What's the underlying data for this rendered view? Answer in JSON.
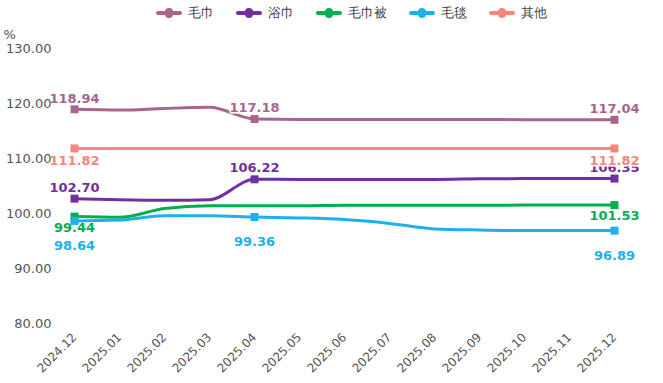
{
  "chart_data": {
    "type": "line",
    "ylabel": "%",
    "x": [
      "2024.12",
      "2025.01",
      "2025.02",
      "2025.03",
      "2025.04",
      "2025.05",
      "2025.06",
      "2025.07",
      "2025.08",
      "2025.09",
      "2025.10",
      "2025.11",
      "2025.12"
    ],
    "ylim": [
      80,
      130
    ],
    "yticks": [
      {
        "value": 80,
        "label": "80.00"
      },
      {
        "value": 90,
        "label": "90.00"
      },
      {
        "value": 100,
        "label": "100.00"
      },
      {
        "value": 110,
        "label": "110.00"
      },
      {
        "value": 120,
        "label": "120.00"
      },
      {
        "value": 130,
        "label": "130.00"
      }
    ],
    "grid": false,
    "legend": "top",
    "data_labels": true,
    "marker": "square",
    "line_style": "smooth",
    "series": [
      {
        "name": "毛巾",
        "color": "#a8668c",
        "values": [
          118.94,
          118.8,
          119.1,
          119.3,
          117.18,
          117.1,
          117.1,
          117.1,
          117.1,
          117.1,
          117.05,
          117.04,
          117.04
        ],
        "value_labels": [
          "118.94",
          null,
          null,
          null,
          "117.18",
          null,
          null,
          null,
          null,
          null,
          null,
          null,
          "117.04"
        ]
      },
      {
        "name": "浴巾",
        "color": "#7030a0",
        "values": [
          102.7,
          102.5,
          102.4,
          102.5,
          106.22,
          106.2,
          106.2,
          106.2,
          106.2,
          106.3,
          106.35,
          106.35,
          106.35
        ],
        "value_labels": [
          "102.70",
          null,
          null,
          null,
          "106.22",
          null,
          null,
          null,
          null,
          null,
          null,
          null,
          "106.35"
        ]
      },
      {
        "name": "毛巾被",
        "color": "#00b050",
        "values": [
          99.44,
          99.3,
          100.9,
          101.4,
          101.4,
          101.4,
          101.5,
          101.5,
          101.5,
          101.5,
          101.53,
          101.53,
          101.53
        ],
        "value_labels": [
          "99.44",
          null,
          null,
          null,
          null,
          null,
          null,
          null,
          null,
          null,
          null,
          null,
          "101.53"
        ]
      },
      {
        "name": "毛毯",
        "color": "#1fb0ea",
        "values": [
          98.64,
          98.8,
          99.6,
          99.6,
          99.36,
          99.2,
          98.9,
          98.2,
          97.2,
          97.0,
          96.9,
          96.89,
          96.89
        ],
        "value_labels": [
          "98.64",
          null,
          null,
          null,
          "99.36",
          null,
          null,
          null,
          null,
          null,
          null,
          null,
          "96.89"
        ]
      },
      {
        "name": "其他",
        "color": "#f4877a",
        "values": [
          111.82,
          111.82,
          111.82,
          111.82,
          111.82,
          111.82,
          111.82,
          111.82,
          111.82,
          111.82,
          111.82,
          111.82,
          111.82
        ],
        "value_labels": [
          "111.82",
          null,
          null,
          null,
          null,
          null,
          null,
          null,
          null,
          null,
          null,
          null,
          "111.82"
        ]
      }
    ]
  }
}
